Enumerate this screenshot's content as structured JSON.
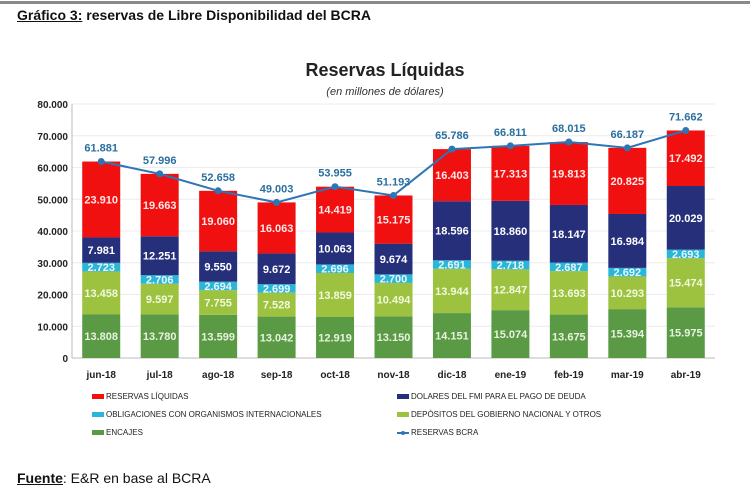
{
  "caption": {
    "prefix": "Gráfico 3:",
    "text": " reservas de Libre Disponibilidad del BCRA"
  },
  "source": {
    "prefix": "Fuente",
    "text": ": E&R en base al BCRA"
  },
  "chart_data": {
    "type": "bar",
    "stacked": true,
    "title": "Reservas Líquidas",
    "subtitle": "(en millones de dólares)",
    "categories": [
      "jun-18",
      "jul-18",
      "ago-18",
      "sep-18",
      "oct-18",
      "nov-18",
      "dic-18",
      "ene-19",
      "feb-19",
      "mar-19",
      "abr-19"
    ],
    "ylim": [
      0,
      80000
    ],
    "yticks": [
      0,
      10000,
      20000,
      30000,
      40000,
      50000,
      60000,
      70000,
      80000
    ],
    "ytick_labels": [
      "0",
      "10.000",
      "20.000",
      "30.000",
      "40.000",
      "50.000",
      "60.000",
      "70.000",
      "80.000"
    ],
    "grid": true,
    "legend_placement": "bottom",
    "series": [
      {
        "name": "ENCAJES",
        "color": "#5a9a45",
        "label_color": "#e8f2e0",
        "values": [
          13808,
          13780,
          13599,
          13042,
          12919,
          13150,
          14151,
          15074,
          13675,
          15394,
          15975
        ]
      },
      {
        "name": "DEPÓSITOS DEL GOBIERNO NACIONAL Y OTROS",
        "color": "#9cc23f",
        "label_color": "#f3f8e0",
        "values": [
          13458,
          9597,
          7755,
          7528,
          13859,
          10494,
          13944,
          12847,
          13693,
          10293,
          15474
        ]
      },
      {
        "name": "OBLIGACIONES CON ORGANISMOS INTERNACIONALES",
        "color": "#2bb5d8",
        "label_color": "#e6f7fb",
        "values": [
          2723,
          2706,
          2694,
          2699,
          2696,
          2700,
          2691,
          2718,
          2687,
          2692,
          2693
        ]
      },
      {
        "name": "DOLARES DEL FMI PARA EL PAGO DE DEUDA",
        "color": "#262f7a",
        "label_color": "#ffffff",
        "values": [
          7981,
          12251,
          9550,
          9672,
          10063,
          9674,
          18596,
          18860,
          18147,
          16984,
          20029
        ]
      },
      {
        "name": "RESERVAS LÍQUIDAS",
        "color": "#f01010",
        "label_color": "#ffe8e8",
        "values": [
          23910,
          19663,
          19060,
          16063,
          14419,
          15175,
          16403,
          17313,
          19813,
          20825,
          17492
        ]
      }
    ],
    "line": {
      "name": "RESERVAS BCRA",
      "type": "line",
      "color": "#2e75b6",
      "values": [
        61881,
        57996,
        52658,
        49003,
        53955,
        51193,
        65786,
        66811,
        68015,
        66187,
        71662
      ]
    }
  },
  "legend_order": [
    4,
    3,
    2,
    1,
    0
  ]
}
